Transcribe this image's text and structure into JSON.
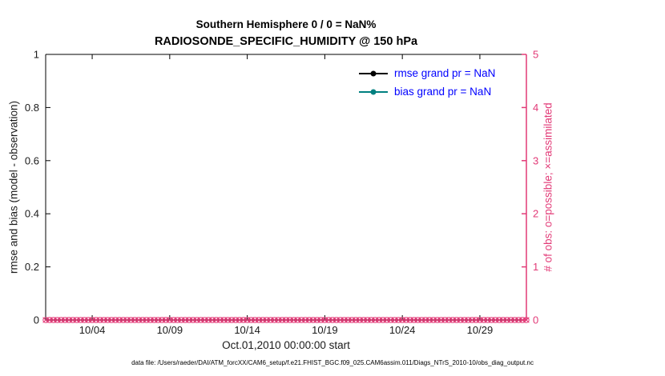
{
  "chart_data": {
    "type": "line",
    "title_lines": [
      "Southern Hemisphere 0 / 0 = NaN%",
      "RADIOSONDE_SPECIFIC_HUMIDITY @ 150 hPa"
    ],
    "xlabel": "Oct.01,2010 00:00:00 start",
    "ylabel_left": "rmse and bias (model - observation)",
    "ylabel_right": "# of obs: o=possible; ×=assimilated",
    "grid": false,
    "legend_position": "upper-right-inside",
    "x_axis": {
      "range_days": [
        0,
        31
      ],
      "tick_days": [
        3,
        8,
        13,
        18,
        23,
        28
      ],
      "tick_labels": [
        "10/04",
        "10/09",
        "10/14",
        "10/19",
        "10/24",
        "10/29"
      ]
    },
    "y_left": {
      "range": [
        0,
        1
      ],
      "ticks": [
        0,
        0.2,
        0.4,
        0.6,
        0.8,
        1
      ],
      "tick_labels": [
        "0",
        "0.2",
        "0.4",
        "0.6",
        "0.8",
        "1"
      ]
    },
    "y_right": {
      "range": [
        0,
        5
      ],
      "ticks": [
        0,
        1,
        2,
        3,
        4,
        5
      ],
      "tick_labels": [
        "0",
        "1",
        "2",
        "3",
        "4",
        "5"
      ]
    },
    "series": [
      {
        "name": "rmse",
        "legend_label": "rmse grand pr = NaN",
        "values": []
      },
      {
        "name": "bias",
        "legend_label": "bias grand pr = NaN",
        "values": []
      }
    ],
    "obs_markers": {
      "description": "observation counts on right axis, all zero",
      "value": 0,
      "x_start_day": 0,
      "x_end_day": 31,
      "x_step_days": 0.25,
      "possible_marker": "o",
      "assimilated_marker": "×"
    }
  },
  "colors": {
    "axis_text": "#1a1a1a",
    "right_axis": "#e23a77",
    "legend_text": "#0000ff",
    "rmse_line": "#000000",
    "bias_line": "#008080"
  },
  "footer": {
    "datafile": "data file: /Users/raeder/DAI/ATM_forcXX/CAM6_setup/f.e21.FHIST_BGC.f09_025.CAM6assim.011/Diags_NTrS_2010-10/obs_diag_output.nc"
  }
}
